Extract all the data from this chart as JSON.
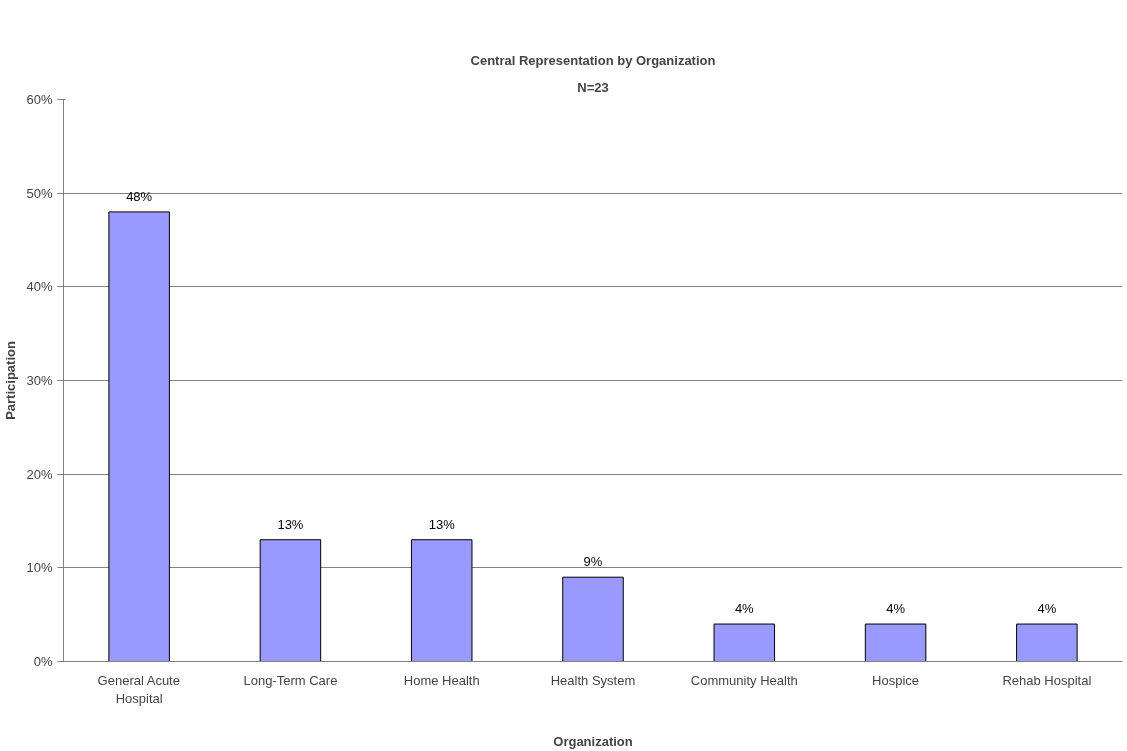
{
  "chart_data": {
    "type": "bar",
    "title": "Central Representation by Organization",
    "subtitle": "N=23",
    "xlabel": "Organization",
    "ylabel": "Participation",
    "categories": [
      "General Acute Hospital",
      "Long-Term Care",
      "Home Health",
      "Health System",
      "Community Health",
      "Hospice",
      "Rehab Hospital"
    ],
    "values": [
      48,
      13,
      13,
      9,
      4,
      4,
      4
    ],
    "value_labels": [
      "48%",
      "13%",
      "13%",
      "9%",
      "4%",
      "4%",
      "4%"
    ],
    "color": "#9999ff",
    "ylim": [
      0,
      60
    ],
    "yticks": [
      {
        "value": 0,
        "label": "0%"
      },
      {
        "value": 10,
        "label": "10%"
      },
      {
        "value": 20,
        "label": "20%"
      },
      {
        "value": 30,
        "label": "30%"
      },
      {
        "value": 40,
        "label": "40%"
      },
      {
        "value": 50,
        "label": "50%"
      },
      {
        "value": 60,
        "label": "60%"
      }
    ],
    "grid": "y"
  }
}
